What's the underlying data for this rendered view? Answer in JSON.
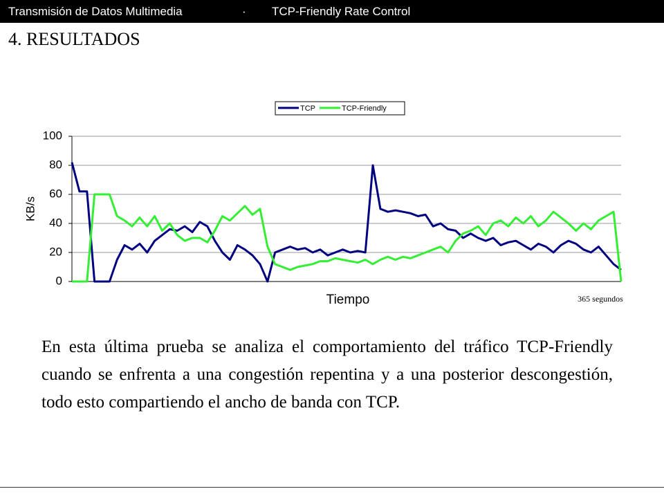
{
  "header": {
    "left": "Transmisión de Datos Multimedia",
    "separator": "·",
    "right": "TCP-Friendly Rate Control"
  },
  "heading": "4. RESULTADOS",
  "chart_data": {
    "type": "line",
    "xlabel": "Tiempo",
    "ylabel": "KB/s",
    "xlim": [
      0,
      365
    ],
    "ylim": [
      0,
      100
    ],
    "yticks": [
      0,
      20,
      40,
      60,
      80,
      100
    ],
    "grid": true,
    "legend": "top",
    "x": [
      0,
      5,
      10,
      15,
      20,
      25,
      30,
      35,
      40,
      45,
      50,
      55,
      60,
      65,
      70,
      75,
      80,
      85,
      90,
      95,
      100,
      105,
      110,
      115,
      120,
      125,
      130,
      135,
      140,
      145,
      150,
      155,
      160,
      165,
      170,
      175,
      180,
      185,
      190,
      195,
      200,
      205,
      210,
      215,
      220,
      225,
      230,
      235,
      240,
      245,
      250,
      255,
      260,
      265,
      270,
      275,
      280,
      285,
      290,
      295,
      300,
      305,
      310,
      315,
      320,
      325,
      330,
      335,
      340,
      345,
      350,
      355,
      360,
      365
    ],
    "series": [
      {
        "name": "TCP",
        "color": "#000080",
        "values": [
          82,
          62,
          62,
          0,
          0,
          0,
          15,
          25,
          22,
          26,
          20,
          28,
          32,
          36,
          35,
          38,
          34,
          41,
          38,
          28,
          20,
          15,
          25,
          22,
          18,
          12,
          0,
          20,
          22,
          24,
          22,
          23,
          20,
          22,
          18,
          20,
          22,
          20,
          21,
          20,
          80,
          50,
          48,
          49,
          48,
          47,
          45,
          46,
          38,
          40,
          36,
          35,
          30,
          33,
          30,
          28,
          30,
          25,
          27,
          28,
          25,
          22,
          26,
          24,
          20,
          25,
          28,
          26,
          22,
          20,
          24,
          18,
          12,
          8
        ]
      },
      {
        "name": "TCP-Friendly",
        "color": "#33ee33",
        "values": [
          0,
          0,
          0,
          60,
          60,
          60,
          45,
          42,
          38,
          44,
          38,
          45,
          35,
          40,
          32,
          28,
          30,
          30,
          27,
          35,
          45,
          42,
          47,
          52,
          46,
          50,
          24,
          12,
          10,
          8,
          10,
          11,
          12,
          14,
          14,
          16,
          15,
          14,
          13,
          15,
          12,
          15,
          17,
          15,
          17,
          16,
          18,
          20,
          22,
          24,
          20,
          28,
          33,
          35,
          38,
          32,
          40,
          42,
          38,
          44,
          40,
          45,
          38,
          42,
          48,
          44,
          40,
          35,
          40,
          36,
          42,
          45,
          48,
          0
        ]
      }
    ]
  },
  "note": "365 segundos",
  "body": "En esta última prueba se analiza el comportamiento del tráfico TCP-Friendly cuando se enfrenta a una congestión repentina y a una posterior descongestión, todo esto compartiendo el ancho de banda con TCP."
}
